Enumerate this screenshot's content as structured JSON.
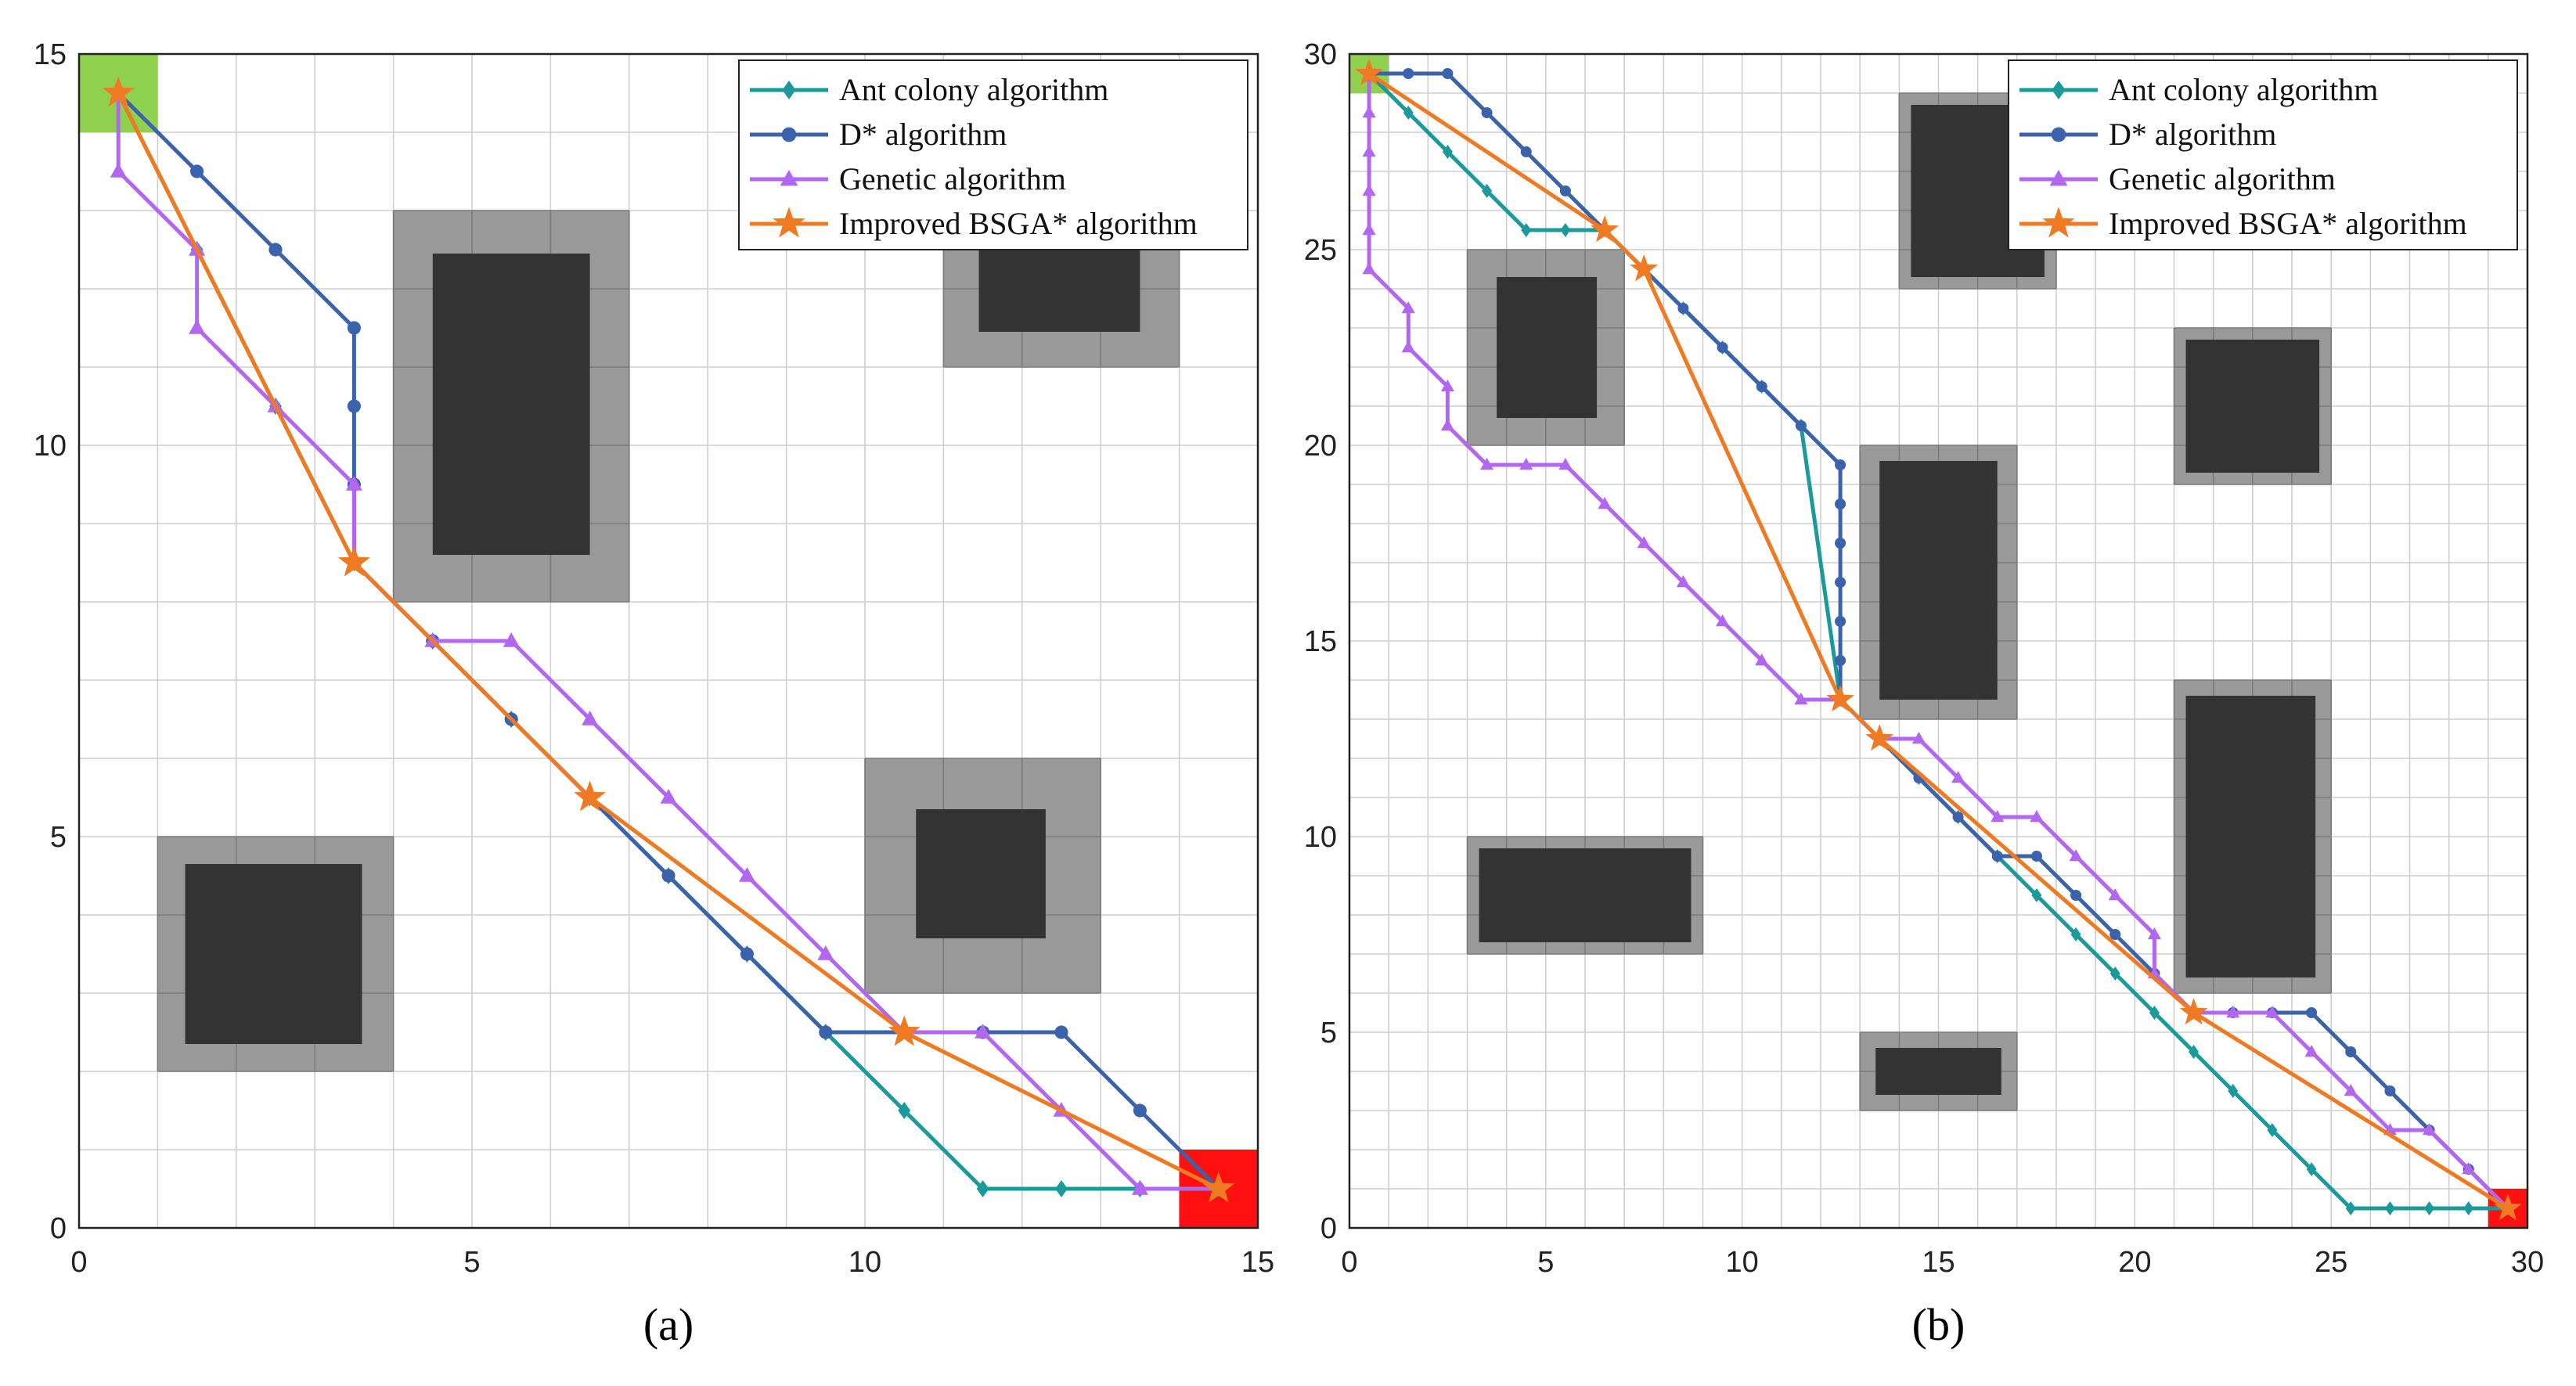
{
  "chart_data": [
    {
      "type": "line",
      "panel": "a",
      "caption": "(a)",
      "xlim": [
        0,
        15
      ],
      "ylim": [
        0,
        15
      ],
      "xticks": [
        "0",
        "5",
        "10",
        "15"
      ],
      "yticks": [
        "0",
        "5",
        "10",
        "15"
      ],
      "grid": true,
      "legend_position": "top-right",
      "start_cell": [
        0,
        14
      ],
      "goal_cell": [
        14,
        0
      ],
      "obstacles": [
        {
          "outer": [
            1,
            2,
            4,
            5
          ],
          "inner": [
            1.35,
            2.35,
            3.6,
            4.65
          ]
        },
        {
          "outer": [
            4,
            8,
            7,
            13
          ],
          "inner": [
            4.5,
            8.6,
            6.5,
            12.45
          ]
        },
        {
          "outer": [
            10,
            3,
            13,
            6
          ],
          "inner": [
            10.65,
            3.7,
            12.3,
            5.35
          ]
        },
        {
          "outer": [
            11,
            11,
            14,
            13
          ],
          "inner": [
            11.45,
            11.45,
            13.5,
            12.5
          ]
        }
      ],
      "series": [
        {
          "name": "Ant colony algorithm",
          "color": "#1a9a9a",
          "marker": "diamond",
          "x": [
            0.5,
            1.5,
            2.5,
            3.5,
            4.5,
            5.5,
            6.5,
            7.5,
            8.5,
            9.5,
            10.5,
            11.5,
            12.5,
            13.5,
            14.5
          ],
          "y": [
            14.5,
            12.5,
            10.5,
            8.5,
            7.5,
            6.5,
            5.5,
            4.5,
            3.5,
            2.5,
            1.5,
            0.5,
            0.5,
            0.5,
            0.5
          ]
        },
        {
          "name": "D* algorithm",
          "color": "#3a62ad",
          "marker": "circle",
          "x": [
            0.5,
            1.5,
            2.5,
            3.5,
            3.5,
            3.5,
            3.5,
            4.5,
            5.5,
            6.5,
            7.5,
            8.5,
            9.5,
            10.5,
            11.5,
            12.5,
            13.5,
            14.5
          ],
          "y": [
            14.5,
            13.5,
            12.5,
            11.5,
            10.5,
            9.5,
            8.5,
            7.5,
            6.5,
            5.5,
            4.5,
            3.5,
            2.5,
            2.5,
            2.5,
            2.5,
            1.5,
            0.5
          ]
        },
        {
          "name": "Genetic algorithm",
          "color": "#b266f2",
          "marker": "triangle",
          "x": [
            0.5,
            0.5,
            1.5,
            1.5,
            2.5,
            3.5,
            3.5,
            4.5,
            5.5,
            6.5,
            7.5,
            8.5,
            9.5,
            10.5,
            11.5,
            12.5,
            13.5,
            14.5
          ],
          "y": [
            14.5,
            13.5,
            12.5,
            11.5,
            10.5,
            9.5,
            8.5,
            7.5,
            7.5,
            6.5,
            5.5,
            4.5,
            3.5,
            2.5,
            2.5,
            1.5,
            0.5,
            0.5
          ]
        },
        {
          "name": "Improved BSGA* algorithm",
          "color": "#f07a22",
          "marker": "star",
          "x": [
            0.5,
            3.5,
            6.5,
            10.5,
            14.5
          ],
          "y": [
            14.5,
            8.5,
            5.5,
            2.5,
            0.5
          ]
        }
      ]
    },
    {
      "type": "line",
      "panel": "b",
      "caption": "(b)",
      "xlim": [
        0,
        30
      ],
      "ylim": [
        0,
        30
      ],
      "xticks": [
        "0",
        "5",
        "10",
        "15",
        "20",
        "25",
        "30"
      ],
      "yticks": [
        "0",
        "5",
        "10",
        "15",
        "20",
        "25",
        "30"
      ],
      "grid": true,
      "legend_position": "top-right",
      "start_cell": [
        0,
        29
      ],
      "goal_cell": [
        29,
        0
      ],
      "obstacles": [
        {
          "outer": [
            3,
            20,
            7,
            25
          ],
          "inner": [
            3.75,
            20.7,
            6.3,
            24.3
          ]
        },
        {
          "outer": [
            3,
            7,
            9,
            10
          ],
          "inner": [
            3.3,
            7.3,
            8.7,
            9.7
          ]
        },
        {
          "outer": [
            13,
            13,
            17,
            20
          ],
          "inner": [
            13.5,
            13.5,
            16.5,
            19.6
          ]
        },
        {
          "outer": [
            13,
            3,
            17,
            5
          ],
          "inner": [
            13.4,
            3.4,
            16.6,
            4.6
          ]
        },
        {
          "outer": [
            14,
            24,
            18,
            29
          ],
          "inner": [
            14.3,
            24.3,
            17.7,
            28.7
          ]
        },
        {
          "outer": [
            21,
            19,
            25,
            23
          ],
          "inner": [
            21.3,
            19.3,
            24.7,
            22.7
          ]
        },
        {
          "outer": [
            21,
            6,
            25,
            14
          ],
          "inner": [
            21.3,
            6.4,
            24.6,
            13.6
          ]
        }
      ],
      "series": [
        {
          "name": "Ant colony algorithm",
          "color": "#1a9a9a",
          "marker": "diamond",
          "x": [
            0.5,
            1.5,
            2.5,
            3.5,
            4.5,
            5.5,
            6.5,
            7.5,
            8.5,
            9.5,
            10.5,
            11.5,
            12.5,
            13.5,
            14.5,
            15.5,
            16.5,
            17.5,
            18.5,
            19.5,
            20.5,
            21.5,
            22.5,
            23.5,
            24.5,
            25.5,
            26.5,
            27.5,
            28.5,
            29.5
          ],
          "y": [
            29.5,
            28.5,
            27.5,
            26.5,
            25.5,
            25.5,
            25.5,
            24.5,
            23.5,
            22.5,
            21.5,
            20.5,
            13.5,
            12.5,
            11.5,
            10.5,
            9.5,
            8.5,
            7.5,
            6.5,
            5.5,
            4.5,
            3.5,
            2.5,
            1.5,
            0.5,
            0.5,
            0.5,
            0.5,
            0.5
          ]
        },
        {
          "name": "D* algorithm",
          "color": "#3a62ad",
          "marker": "circle",
          "x": [
            0.5,
            1.5,
            2.5,
            3.5,
            4.5,
            5.5,
            6.5,
            7.5,
            8.5,
            9.5,
            10.5,
            11.5,
            12.5,
            12.5,
            12.5,
            12.5,
            12.5,
            12.5,
            12.5,
            13.5,
            14.5,
            15.5,
            16.5,
            17.5,
            18.5,
            19.5,
            20.5,
            21.5,
            22.5,
            23.5,
            24.5,
            25.5,
            26.5,
            27.5,
            28.5,
            29.5
          ],
          "y": [
            29.5,
            29.5,
            29.5,
            28.5,
            27.5,
            26.5,
            25.5,
            24.5,
            23.5,
            22.5,
            21.5,
            20.5,
            19.5,
            18.5,
            17.5,
            16.5,
            15.5,
            14.5,
            13.5,
            12.5,
            11.5,
            10.5,
            9.5,
            9.5,
            8.5,
            7.5,
            6.5,
            5.5,
            5.5,
            5.5,
            5.5,
            4.5,
            3.5,
            2.5,
            1.5,
            0.5
          ]
        },
        {
          "name": "Genetic algorithm",
          "color": "#b266f2",
          "marker": "triangle",
          "x": [
            0.5,
            0.5,
            0.5,
            0.5,
            0.5,
            0.5,
            1.5,
            1.5,
            2.5,
            2.5,
            3.5,
            4.5,
            5.5,
            6.5,
            7.5,
            8.5,
            9.5,
            10.5,
            11.5,
            12.5,
            13.5,
            14.5,
            15.5,
            16.5,
            17.5,
            18.5,
            19.5,
            20.5,
            20.5,
            21.5,
            22.5,
            23.5,
            24.5,
            25.5,
            26.5,
            27.5,
            28.5,
            29.5
          ],
          "y": [
            29.5,
            28.5,
            27.5,
            26.5,
            25.5,
            24.5,
            23.5,
            22.5,
            21.5,
            20.5,
            19.5,
            19.5,
            19.5,
            18.5,
            17.5,
            16.5,
            15.5,
            14.5,
            13.5,
            13.5,
            12.5,
            12.5,
            11.5,
            10.5,
            10.5,
            9.5,
            8.5,
            7.5,
            6.5,
            5.5,
            5.5,
            5.5,
            4.5,
            3.5,
            2.5,
            2.5,
            1.5,
            0.5
          ]
        },
        {
          "name": "Improved BSGA* algorithm",
          "color": "#f07a22",
          "marker": "star",
          "x": [
            0.5,
            6.5,
            7.5,
            12.5,
            13.5,
            21.5,
            29.5
          ],
          "y": [
            29.5,
            25.5,
            24.5,
            13.5,
            12.5,
            5.5,
            0.5
          ]
        }
      ]
    }
  ]
}
